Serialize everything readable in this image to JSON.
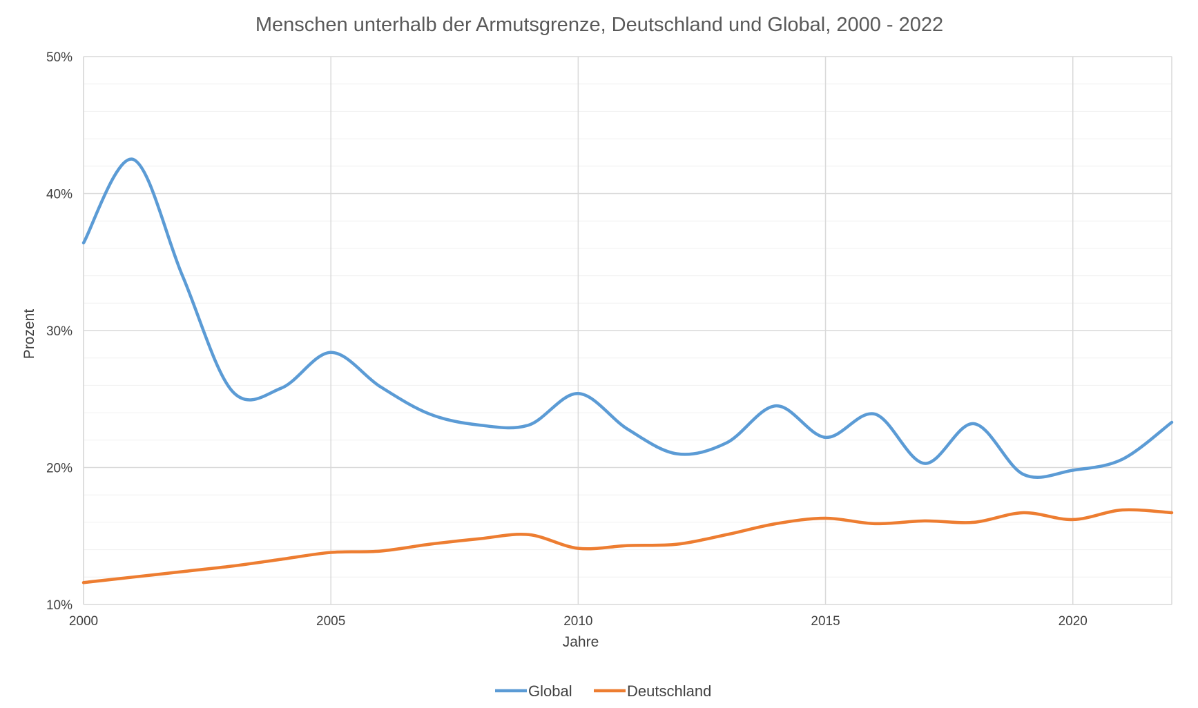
{
  "chart_data": {
    "type": "line",
    "title": "Menschen unterhalb der Armutsgrenze, Deutschland und Global, 2000 - 2022",
    "xlabel": "Jahre",
    "ylabel": "Prozent",
    "xlim": [
      2000,
      2022
    ],
    "ylim": [
      10,
      50
    ],
    "x_ticks": [
      "2000",
      "2005",
      "2010",
      "2015",
      "2020"
    ],
    "y_ticks": [
      "10%",
      "20%",
      "30%",
      "40%",
      "50%"
    ],
    "grid": true,
    "legend_position": "bottom",
    "x": [
      2000,
      2001,
      2002,
      2003,
      2004,
      2005,
      2006,
      2007,
      2008,
      2009,
      2010,
      2011,
      2012,
      2013,
      2014,
      2015,
      2016,
      2017,
      2018,
      2019,
      2020,
      2021,
      2022
    ],
    "series": [
      {
        "name": "Global",
        "color": "#5b9bd5",
        "values": [
          36.4,
          42.5,
          34.0,
          25.6,
          25.8,
          28.4,
          25.9,
          23.9,
          23.1,
          23.1,
          25.4,
          22.8,
          21.0,
          21.8,
          24.5,
          22.2,
          23.9,
          20.3,
          23.2,
          19.5,
          19.8,
          20.6,
          23.3
        ]
      },
      {
        "name": "Deutschland",
        "color": "#ed7d31",
        "values": [
          11.6,
          12.0,
          12.4,
          12.8,
          13.3,
          13.8,
          13.9,
          14.4,
          14.8,
          15.1,
          14.1,
          14.3,
          14.4,
          15.1,
          15.9,
          16.3,
          15.9,
          16.1,
          16.0,
          16.7,
          16.2,
          16.9,
          16.7
        ]
      }
    ]
  }
}
